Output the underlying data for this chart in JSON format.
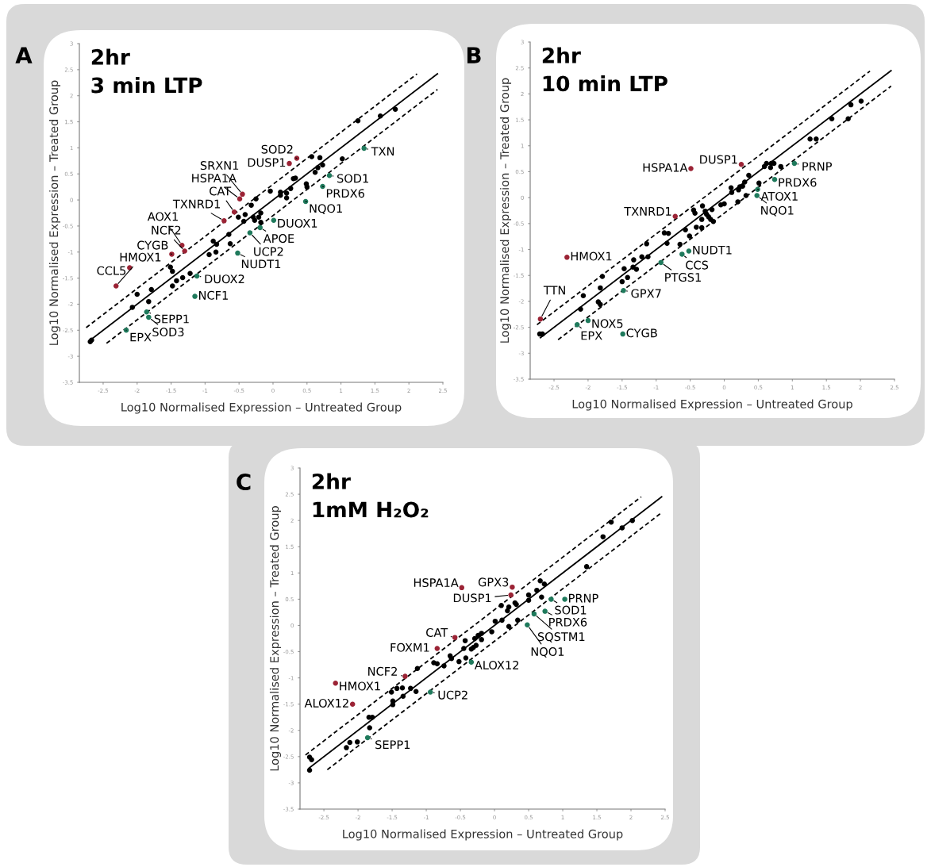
{
  "chart_data": [
    {
      "type": "scatter",
      "title": "2hr\n3 min LTP",
      "xlabel": "Log10 Normalised Expression – Untreated Group",
      "ylabel": "Log10 Normalised Expression – Treated Group",
      "xlim": [
        -2.85,
        2.5
      ],
      "ylim": [
        -3.5,
        3
      ],
      "xticks": [
        -2.5,
        -2,
        -1.5,
        -1,
        -0.5,
        0,
        0.5,
        1,
        1.5,
        2,
        2.5
      ],
      "yticks": [
        -3.5,
        -3,
        -2.5,
        -2,
        -1.5,
        -1,
        -0.5,
        0,
        0.5,
        1,
        1.5,
        2,
        2.5,
        3
      ],
      "grid": false,
      "legend": false,
      "series": [
        {
          "type": "scatter",
          "marker": "circle",
          "color": "#000000",
          "x": [
            1.8,
            1.58,
            1.25,
            1.02,
            0.57,
            0.69,
            0.73,
            0.66,
            0.62,
            0.33,
            0.3,
            0.26,
            0.49,
            0.5,
            -0.04,
            0.11,
            0.11,
            0.2,
            0.2,
            -0.25,
            -0.32,
            -0.51,
            -0.41,
            -0.43,
            -0.29,
            -0.27,
            -0.21,
            -0.18,
            -0.18,
            -0.65,
            -0.63,
            -0.88,
            -0.83,
            -0.84,
            -0.94,
            -1.51,
            -1.48,
            -1.22,
            -1.33,
            -1.42,
            -1.48,
            -1.79,
            -1.83,
            -2.0,
            -2.07,
            -2.69,
            -2.67
          ],
          "values": [
            1.74,
            1.61,
            1.52,
            0.79,
            0.83,
            0.81,
            0.67,
            0.62,
            0.53,
            0.42,
            0.41,
            0.22,
            0.31,
            0.25,
            0.17,
            0.15,
            0.09,
            0.13,
            0.04,
            0.02,
            -0.1,
            -0.33,
            -0.28,
            -0.41,
            -0.33,
            -0.39,
            -0.33,
            -0.25,
            -0.43,
            -0.66,
            -0.84,
            -0.79,
            -0.85,
            -1.0,
            -1.05,
            -1.29,
            -1.37,
            -1.41,
            -1.49,
            -1.55,
            -1.65,
            -1.72,
            -1.95,
            -1.81,
            -2.06,
            -2.72,
            -2.69
          ]
        },
        {
          "type": "scatter",
          "marker": "circle",
          "color": "#9b2335",
          "x": [
            -2.31,
            -2.11,
            -1.49,
            -1.3,
            -1.34,
            -0.72,
            -0.57,
            -0.49,
            -0.45,
            0.24,
            0.35
          ],
          "values": [
            -1.65,
            -1.3,
            -1.04,
            -0.98,
            -0.87,
            -0.4,
            -0.23,
            0.02,
            0.11,
            0.7,
            0.8
          ]
        },
        {
          "type": "scatter",
          "marker": "circle",
          "color": "#1f7a5c",
          "x": [
            1.34,
            0.83,
            0.73,
            0.48,
            0.01,
            -0.19,
            -0.34,
            -0.52,
            -1.12,
            -1.15,
            -1.86,
            -1.83,
            -2.16
          ],
          "values": [
            0.99,
            0.47,
            0.26,
            -0.03,
            -0.39,
            -0.53,
            -0.63,
            -1.02,
            -1.46,
            -1.85,
            -2.15,
            -2.25,
            -2.5
          ]
        },
        {
          "type": "line",
          "color": "#000000",
          "line_style": "solid",
          "x": [
            -2.7,
            2.42
          ],
          "values": [
            -2.7,
            2.42
          ]
        },
        {
          "type": "line",
          "color": "#000000",
          "line_style": "dashed",
          "x": [
            -2.75,
            2.12
          ],
          "values": [
            -2.45,
            2.42
          ]
        },
        {
          "type": "line",
          "color": "#000000",
          "line_style": "dashed",
          "x": [
            -2.45,
            2.42
          ],
          "values": [
            -2.75,
            2.12
          ]
        }
      ],
      "annotations": [
        "A",
        {
          "text": "HMOX1",
          "x": -2.31,
          "y": -1.65
        },
        {
          "text": "CCL5",
          "x": -2.11,
          "y": -1.3
        },
        {
          "text": "CYGB",
          "x": -1.49,
          "y": -1.04
        },
        {
          "text": "NCF2",
          "x": -1.3,
          "y": -0.98
        },
        {
          "text": "AOX1",
          "x": -1.34,
          "y": -0.87
        },
        {
          "text": "TXNRD1",
          "x": -0.72,
          "y": -0.4
        },
        {
          "text": "CAT",
          "x": -0.57,
          "y": -0.23
        },
        {
          "text": "HSPA1A",
          "x": -0.49,
          "y": 0.02
        },
        {
          "text": "SRXN1",
          "x": -0.45,
          "y": 0.11
        },
        {
          "text": "DUSP1",
          "x": 0.24,
          "y": 0.7
        },
        {
          "text": "SOD2",
          "x": 0.35,
          "y": 0.8
        },
        {
          "text": "TXN",
          "x": 1.34,
          "y": 0.99
        },
        {
          "text": "SOD1",
          "x": 0.83,
          "y": 0.47
        },
        {
          "text": "PRDX6",
          "x": 0.73,
          "y": 0.26
        },
        {
          "text": "NQO1",
          "x": 0.48,
          "y": -0.03
        },
        {
          "text": "DUOX1",
          "x": 0.01,
          "y": -0.39
        },
        {
          "text": "APOE",
          "x": -0.19,
          "y": -0.53
        },
        {
          "text": "UCP2",
          "x": -0.34,
          "y": -0.63
        },
        {
          "text": "NUDT1",
          "x": -0.52,
          "y": -1.02
        },
        {
          "text": "DUOX2",
          "x": -1.12,
          "y": -1.46
        },
        {
          "text": "NCF1",
          "x": -1.15,
          "y": -1.85
        },
        {
          "text": "SEPP1",
          "x": -1.86,
          "y": -2.15
        },
        {
          "text": "SOD3",
          "x": -1.83,
          "y": -2.25
        },
        {
          "text": "EPX",
          "x": -2.16,
          "y": -2.5
        }
      ]
    },
    {
      "type": "scatter",
      "title": "2hr\n10 min LTP",
      "xlabel": "Log10 Normalised Expression – Untreated Group",
      "ylabel": "Log10 Normalised Expression – Treated Group",
      "xlim": [
        -2.85,
        2.5
      ],
      "ylim": [
        -3.5,
        3
      ],
      "xticks": [
        -2.5,
        -2,
        -1.5,
        -1,
        -0.5,
        0,
        0.5,
        1,
        1.5,
        2,
        2.5
      ],
      "yticks": [
        -3.5,
        -3,
        -2.5,
        -2,
        -1.5,
        -1,
        -0.5,
        0,
        0.5,
        1,
        1.5,
        2,
        2.5,
        3
      ],
      "grid": false,
      "legend": false,
      "series": [
        {
          "type": "scatter",
          "marker": "circle",
          "color": "#000000",
          "x": [
            2.01,
            1.86,
            1.58,
            1.82,
            1.26,
            1.35,
            0.83,
            0.59,
            0.62,
            0.68,
            0.69,
            0.73,
            0.36,
            0.3,
            0.23,
            0.27,
            0.21,
            0.1,
            0.11,
            0.51,
            0.32,
            0.2,
            0.0,
            -0.05,
            -0.32,
            -0.18,
            -0.28,
            -0.26,
            -0.23,
            -0.2,
            -0.16,
            -0.33,
            -0.45,
            -0.43,
            -0.41,
            -0.33,
            -0.57,
            -0.51,
            -0.65,
            -0.88,
            -0.82,
            -0.84,
            -1.14,
            -1.12,
            -1.21,
            -1.33,
            -1.34,
            -1.29,
            -1.47,
            -1.42,
            -1.5,
            -1.79,
            -1.82,
            -1.85,
            -1.82,
            -2.07,
            -2.11,
            -2.71,
            -2.67
          ],
          "values": [
            1.86,
            1.79,
            1.52,
            1.52,
            1.13,
            1.13,
            0.6,
            0.6,
            0.66,
            0.58,
            0.66,
            0.66,
            0.43,
            0.3,
            0.21,
            0.22,
            0.15,
            0.19,
            0.1,
            0.28,
            0.04,
            -0.08,
            -0.12,
            -0.14,
            -0.16,
            -0.23,
            -0.26,
            -0.32,
            -0.37,
            -0.42,
            -0.46,
            -0.42,
            -0.24,
            -0.3,
            -0.57,
            -0.58,
            -0.62,
            -0.74,
            -0.9,
            -0.68,
            -0.69,
            -0.88,
            -0.89,
            -1.14,
            -1.14,
            -1.2,
            -1.34,
            -1.38,
            -1.37,
            -1.54,
            -1.62,
            -1.52,
            -1.74,
            -2.01,
            -2.06,
            -1.89,
            -2.15,
            -2.63,
            -2.63
          ]
        },
        {
          "type": "scatter",
          "marker": "circle",
          "color": "#9b2335",
          "x": [
            0.25,
            -0.49,
            -0.72,
            -2.31,
            -2.7
          ],
          "values": [
            0.64,
            0.56,
            -0.36,
            -1.15,
            -2.34
          ]
        },
        {
          "type": "scatter",
          "marker": "circle",
          "color": "#1f7a5c",
          "x": [
            1.03,
            0.74,
            0.49,
            0.48,
            -0.52,
            -0.62,
            -0.93,
            -1.48,
            -2.0,
            -2.16,
            -1.49
          ],
          "values": [
            0.66,
            0.35,
            0.16,
            0.04,
            -1.03,
            -1.09,
            -1.25,
            -1.79,
            -2.37,
            -2.45,
            -2.63
          ]
        },
        {
          "type": "line",
          "color": "#000000",
          "line_style": "solid",
          "x": [
            -2.7,
            2.45
          ],
          "values": [
            -2.7,
            2.45
          ]
        },
        {
          "type": "line",
          "color": "#000000",
          "line_style": "dashed",
          "x": [
            -2.75,
            2.14
          ],
          "values": [
            -2.45,
            2.44
          ]
        },
        {
          "type": "line",
          "color": "#000000",
          "line_style": "dashed",
          "x": [
            -2.44,
            2.45
          ],
          "values": [
            -2.74,
            2.15
          ]
        }
      ],
      "annotations": [
        "B",
        {
          "text": "DUSP1",
          "x": 0.25,
          "y": 0.64
        },
        {
          "text": "HSPA1A",
          "x": -0.49,
          "y": 0.56
        },
        {
          "text": "TXNRD1",
          "x": -0.72,
          "y": -0.36
        },
        {
          "text": "HMOX1",
          "x": -2.31,
          "y": -1.15
        },
        {
          "text": "TTN",
          "x": -2.7,
          "y": -2.34
        },
        {
          "text": "PRNP",
          "x": 1.03,
          "y": 0.66
        },
        {
          "text": "PRDX6",
          "x": 0.74,
          "y": 0.35
        },
        {
          "text": "ATOX1",
          "x": 0.49,
          "y": 0.16
        },
        {
          "text": "NQO1",
          "x": 0.48,
          "y": 0.04
        },
        {
          "text": "NUDT1",
          "x": -0.52,
          "y": -1.03
        },
        {
          "text": "CCS",
          "x": -0.62,
          "y": -1.09
        },
        {
          "text": "PTGS1",
          "x": -0.93,
          "y": -1.25
        },
        {
          "text": "GPX7",
          "x": -1.48,
          "y": -1.79
        },
        {
          "text": "NOX5",
          "x": -2.0,
          "y": -2.37
        },
        {
          "text": "EPX",
          "x": -2.16,
          "y": -2.45
        },
        {
          "text": "CYGB",
          "x": -1.49,
          "y": -2.63
        }
      ]
    },
    {
      "type": "scatter",
      "title": "2hr\n1mM H₂O₂",
      "xlabel": "Log10 Normalised Expression – Untreated Group",
      "ylabel": "Log10 Normalised Expression – Treated Group",
      "xlim": [
        -2.85,
        2.5
      ],
      "ylim": [
        -3.5,
        3
      ],
      "xticks": [
        -2.5,
        -2,
        -1.5,
        -1,
        -0.5,
        0,
        0.5,
        1,
        1.5,
        2,
        2.5
      ],
      "yticks": [
        -3.5,
        -3,
        -2.5,
        -2,
        -1.5,
        -1,
        -0.5,
        0,
        0.5,
        1,
        1.5,
        2,
        2.5,
        3
      ],
      "grid": false,
      "legend": false,
      "series": [
        {
          "type": "scatter",
          "marker": "circle",
          "color": "#000000",
          "x": [
            2.02,
            1.71,
            1.87,
            1.59,
            1.35,
            0.67,
            0.73,
            0.62,
            0.5,
            0.5,
            0.69,
            0.3,
            0.32,
            0.1,
            0.21,
            0.19,
            0.11,
            0.01,
            -0.04,
            0.34,
            0.21,
            -0.19,
            -0.24,
            -0.19,
            -0.29,
            -0.43,
            -0.27,
            -0.31,
            -0.34,
            -0.45,
            -0.65,
            -0.63,
            -0.42,
            -0.52,
            -0.74,
            -0.89,
            -0.84,
            -1.13,
            -1.15,
            -1.23,
            -1.35,
            -1.43,
            -1.51,
            -1.34,
            -1.49,
            -1.49,
            -1.84,
            -1.79,
            -1.83,
            -2.12,
            -2.17,
            -2.01,
            -2.71,
            -2.68,
            -2.71
          ],
          "values": [
            2.0,
            1.97,
            1.86,
            1.69,
            1.12,
            0.85,
            0.79,
            0.67,
            0.58,
            0.48,
            0.54,
            0.43,
            0.4,
            0.38,
            0.35,
            0.28,
            0.1,
            0.08,
            -0.12,
            0.1,
            -0.02,
            -0.15,
            -0.19,
            -0.27,
            -0.25,
            -0.29,
            -0.38,
            -0.42,
            -0.45,
            -0.44,
            -0.58,
            -0.63,
            -0.62,
            -0.69,
            -0.77,
            -0.71,
            -0.73,
            -0.82,
            -1.26,
            -1.2,
            -1.19,
            -1.2,
            -1.27,
            -1.35,
            -1.44,
            -1.51,
            -1.75,
            -1.75,
            -1.95,
            -2.23,
            -2.33,
            -2.22,
            -2.51,
            -2.56,
            -2.76
          ]
        },
        {
          "type": "scatter",
          "marker": "circle",
          "color": "#9b2335",
          "x": [
            0.26,
            0.24,
            -0.48,
            -0.58,
            -0.84,
            -1.31,
            -2.33,
            -2.08
          ],
          "values": [
            0.73,
            0.58,
            0.72,
            -0.23,
            -0.44,
            -0.97,
            -1.1,
            -1.5
          ]
        },
        {
          "type": "scatter",
          "marker": "circle",
          "color": "#1f7a5c",
          "x": [
            0.83,
            1.03,
            0.74,
            0.58,
            0.48,
            -0.34,
            -0.94,
            -1.86
          ],
          "values": [
            0.5,
            0.5,
            0.27,
            0.22,
            0.01,
            -0.7,
            -1.27,
            -2.14
          ]
        },
        {
          "type": "line",
          "color": "#000000",
          "line_style": "solid",
          "x": [
            -2.72,
            2.45
          ],
          "values": [
            -2.72,
            2.45
          ]
        },
        {
          "type": "line",
          "color": "#000000",
          "line_style": "dashed",
          "x": [
            -2.77,
            2.15
          ],
          "values": [
            -2.47,
            2.45
          ]
        },
        {
          "type": "line",
          "color": "#000000",
          "line_style": "dashed",
          "x": [
            -2.45,
            2.45
          ],
          "values": [
            -2.75,
            2.15
          ]
        }
      ],
      "annotations": [
        "C",
        {
          "text": "GPX3",
          "x": 0.26,
          "y": 0.73
        },
        {
          "text": "DUSP1",
          "x": 0.24,
          "y": 0.58
        },
        {
          "text": "HSPA1A",
          "x": -0.48,
          "y": 0.72
        },
        {
          "text": "CAT",
          "x": -0.58,
          "y": -0.23
        },
        {
          "text": "FOXM1",
          "x": -0.84,
          "y": -0.44
        },
        {
          "text": "NCF2",
          "x": -1.31,
          "y": -0.97
        },
        {
          "text": "HMOX1",
          "x": -2.33,
          "y": -1.1
        },
        {
          "text": "ALOX12",
          "x": -2.08,
          "y": -1.5
        },
        {
          "text": "SOD1",
          "x": 0.83,
          "y": 0.5
        },
        {
          "text": "PRNP",
          "x": 1.03,
          "y": 0.5
        },
        {
          "text": "PRDX6",
          "x": 0.74,
          "y": 0.27
        },
        {
          "text": "SQSTM1",
          "x": 0.58,
          "y": 0.22
        },
        {
          "text": "NQO1",
          "x": 0.48,
          "y": 0.01
        },
        {
          "text": "ALOX12",
          "x": -0.34,
          "y": -0.7
        },
        {
          "text": "UCP2",
          "x": -0.94,
          "y": -1.27
        },
        {
          "text": "SEPP1",
          "x": -1.86,
          "y": -2.14
        }
      ]
    }
  ]
}
